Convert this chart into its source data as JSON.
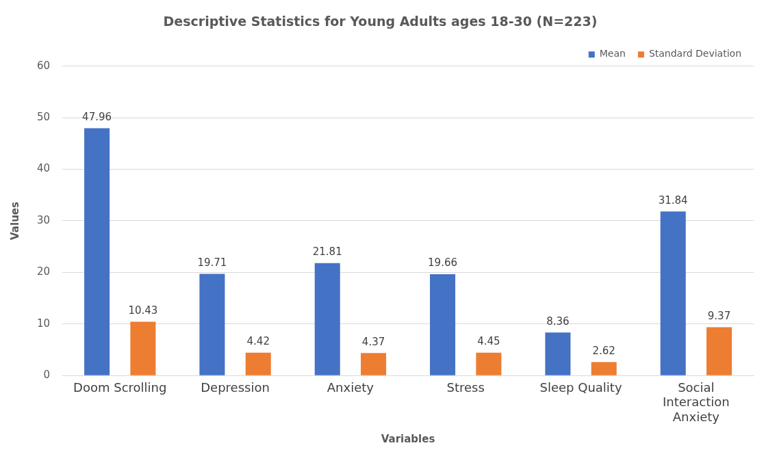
{
  "chart_data": {
    "type": "bar",
    "title": "Descriptive Statistics for Young Adults ages 18-30 (N=223)",
    "xlabel": "Variables",
    "ylabel": "Values",
    "categories": [
      "Doom Scrolling",
      "Depression",
      "Anxiety",
      "Stress",
      "Sleep Quality",
      "Social Interaction Anxiety"
    ],
    "series": [
      {
        "name": "Mean",
        "color": "#4472c4",
        "values": [
          47.96,
          19.71,
          21.81,
          19.66,
          8.36,
          31.84
        ]
      },
      {
        "name": "Standard Deviation",
        "color": "#ed7d31",
        "values": [
          10.43,
          4.42,
          4.37,
          4.45,
          2.62,
          9.37
        ]
      }
    ],
    "ylim": [
      0,
      60
    ],
    "yticks": [
      0,
      10,
      20,
      30,
      40,
      50,
      60
    ],
    "grid": "y",
    "legend": "top right",
    "data_labels": true
  }
}
